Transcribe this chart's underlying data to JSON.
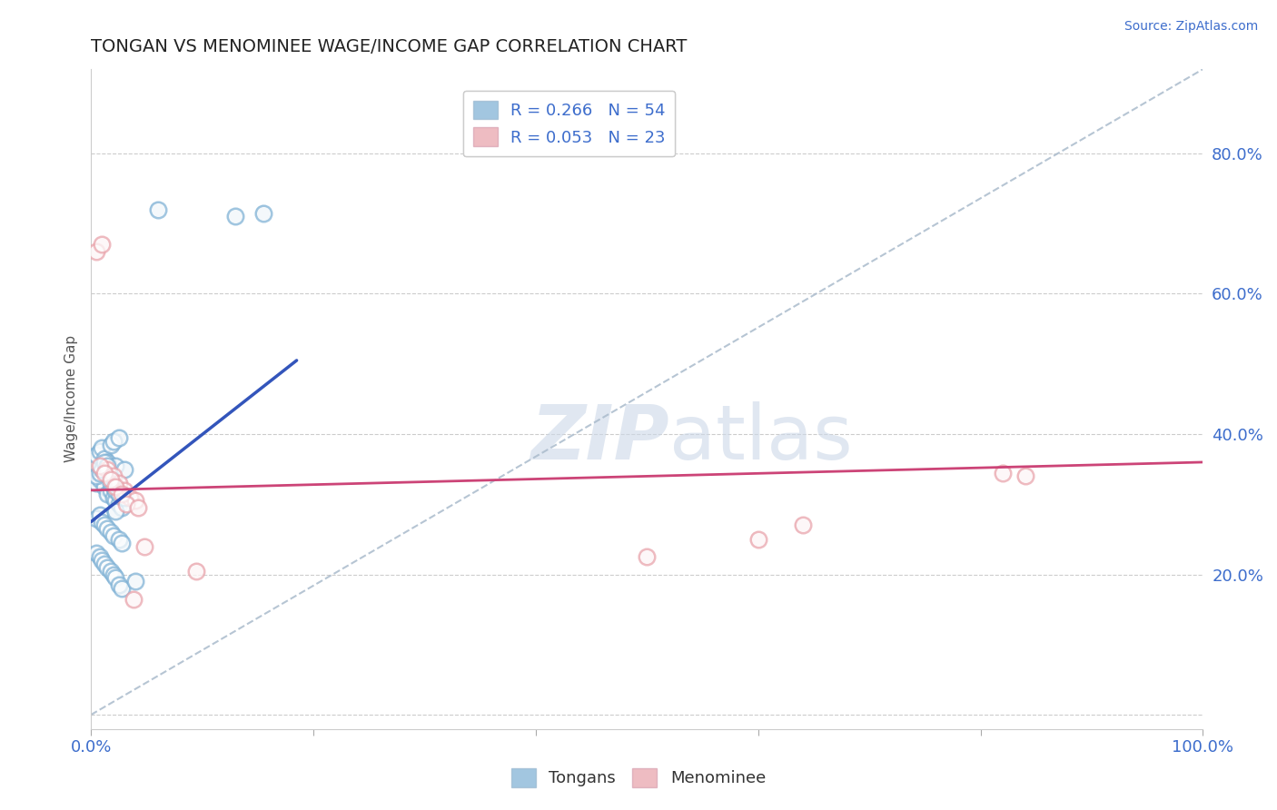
{
  "title": "TONGAN VS MENOMINEE WAGE/INCOME GAP CORRELATION CHART",
  "source": "Source: ZipAtlas.com",
  "ylabel": "Wage/Income Gap",
  "xlim": [
    0,
    1.0
  ],
  "ylim": [
    -0.02,
    0.92
  ],
  "xticks": [
    0.0,
    0.2,
    0.4,
    0.6,
    0.8,
    1.0
  ],
  "xticklabels": [
    "0.0%",
    "",
    "",
    "",
    "",
    "100.0%"
  ],
  "yticks": [
    0.0,
    0.2,
    0.4,
    0.6,
    0.8
  ],
  "yticklabels": [
    "",
    "20.0%",
    "40.0%",
    "60.0%",
    "80.0%"
  ],
  "legend_r1": "R = 0.266",
  "legend_n1": "N = 54",
  "legend_r2": "R = 0.053",
  "legend_n2": "N = 23",
  "blue_color": "#7bafd4",
  "pink_color": "#e8a0a8",
  "trend_blue": "#3355bb",
  "trend_pink": "#cc4477",
  "ref_line_color": "#aabbcc",
  "watermark_color": "#ccd8e8",
  "tongans_x": [
    0.005,
    0.008,
    0.01,
    0.012,
    0.015,
    0.018,
    0.02,
    0.022,
    0.025,
    0.028,
    0.005,
    0.008,
    0.01,
    0.012,
    0.015,
    0.018,
    0.02,
    0.022,
    0.025,
    0.03,
    0.005,
    0.008,
    0.01,
    0.012,
    0.015,
    0.018,
    0.02,
    0.022,
    0.025,
    0.028,
    0.005,
    0.008,
    0.01,
    0.012,
    0.015,
    0.018,
    0.02,
    0.022,
    0.025,
    0.028,
    0.005,
    0.008,
    0.01,
    0.012,
    0.015,
    0.018,
    0.02,
    0.022,
    0.025,
    0.03,
    0.04,
    0.06,
    0.13,
    0.155
  ],
  "tongans_y": [
    0.33,
    0.335,
    0.34,
    0.325,
    0.315,
    0.32,
    0.31,
    0.305,
    0.3,
    0.295,
    0.37,
    0.375,
    0.38,
    0.365,
    0.36,
    0.385,
    0.39,
    0.355,
    0.395,
    0.35,
    0.28,
    0.285,
    0.275,
    0.27,
    0.265,
    0.26,
    0.255,
    0.29,
    0.25,
    0.245,
    0.23,
    0.225,
    0.22,
    0.215,
    0.21,
    0.205,
    0.2,
    0.195,
    0.185,
    0.18,
    0.34,
    0.345,
    0.35,
    0.36,
    0.355,
    0.33,
    0.325,
    0.32,
    0.315,
    0.31,
    0.19,
    0.72,
    0.71,
    0.715
  ],
  "menominee_x": [
    0.005,
    0.01,
    0.015,
    0.02,
    0.025,
    0.03,
    0.035,
    0.04,
    0.008,
    0.012,
    0.018,
    0.022,
    0.028,
    0.032,
    0.038,
    0.042,
    0.048,
    0.095,
    0.5,
    0.6,
    0.64,
    0.82,
    0.84
  ],
  "menominee_y": [
    0.66,
    0.67,
    0.35,
    0.34,
    0.33,
    0.32,
    0.31,
    0.305,
    0.355,
    0.345,
    0.335,
    0.325,
    0.315,
    0.3,
    0.165,
    0.295,
    0.24,
    0.205,
    0.225,
    0.25,
    0.27,
    0.345,
    0.34
  ],
  "blue_trendline_x": [
    0.0,
    0.185
  ],
  "blue_trendline_y": [
    0.275,
    0.505
  ],
  "pink_trendline_x": [
    0.0,
    1.0
  ],
  "pink_trendline_y": [
    0.32,
    0.36
  ],
  "diag_line_x": [
    0.0,
    1.0
  ],
  "diag_line_y": [
    0.0,
    0.92
  ]
}
